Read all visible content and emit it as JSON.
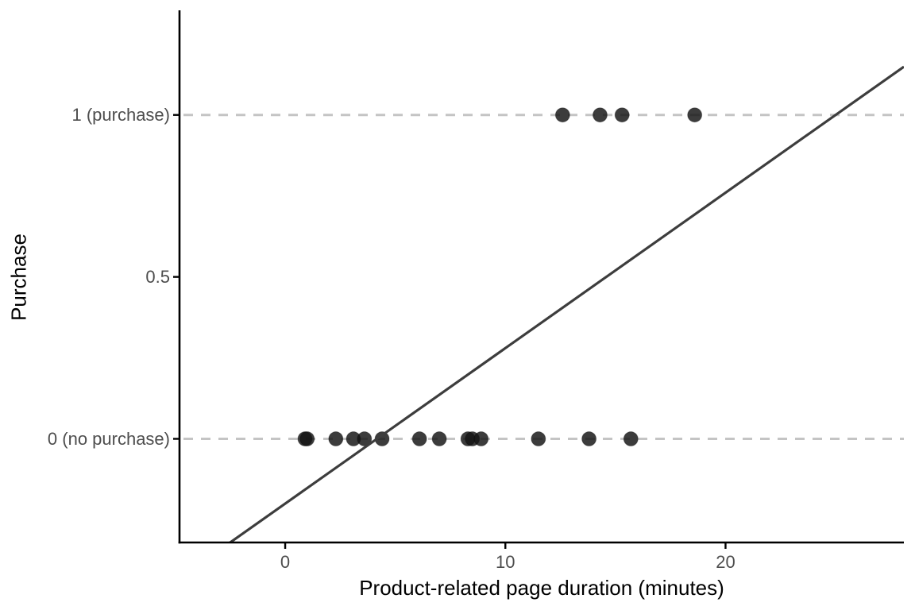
{
  "chart_data": {
    "type": "scatter",
    "title": "",
    "xlabel": "Product-related page duration (minutes)",
    "ylabel": "Purchase",
    "xlim": [
      -4.8,
      28.1
    ],
    "ylim": [
      -0.32,
      1.323
    ],
    "grid": "off",
    "legend": "none",
    "xticks": [
      {
        "value": 0,
        "label": "0"
      },
      {
        "value": 10,
        "label": "10"
      },
      {
        "value": 20,
        "label": "20"
      }
    ],
    "yticks": [
      {
        "value": 0,
        "label": "0 (no purchase)"
      },
      {
        "value": 0.5,
        "label": "0.5"
      },
      {
        "value": 1,
        "label": "1 (purchase)"
      }
    ],
    "reference_lines": [
      {
        "y": 0,
        "style": "dashed"
      },
      {
        "y": 1,
        "style": "dashed"
      }
    ],
    "points": [
      {
        "x": 0.9,
        "y": 0
      },
      {
        "x": 1.0,
        "y": 0
      },
      {
        "x": 2.3,
        "y": 0
      },
      {
        "x": 3.1,
        "y": 0
      },
      {
        "x": 3.6,
        "y": 0
      },
      {
        "x": 4.4,
        "y": 0
      },
      {
        "x": 6.1,
        "y": 0
      },
      {
        "x": 7.0,
        "y": 0
      },
      {
        "x": 8.3,
        "y": 0
      },
      {
        "x": 8.5,
        "y": 0
      },
      {
        "x": 8.9,
        "y": 0
      },
      {
        "x": 11.5,
        "y": 0
      },
      {
        "x": 13.8,
        "y": 0
      },
      {
        "x": 15.7,
        "y": 0
      },
      {
        "x": 12.6,
        "y": 1
      },
      {
        "x": 14.3,
        "y": 1
      },
      {
        "x": 15.3,
        "y": 1
      },
      {
        "x": 18.6,
        "y": 1
      }
    ],
    "fit_line": {
      "type": "linear",
      "intercept": -0.2,
      "slope": 0.048
    },
    "colors": {
      "background": "#ffffff",
      "point": "#141414",
      "point_alpha": 0.83,
      "reference_dashed": "#c4c4c4",
      "fit_line": "#3d3d3d",
      "spine": "#000000",
      "tick_label": "#4d4d4d",
      "axis_title": "#000000"
    }
  }
}
